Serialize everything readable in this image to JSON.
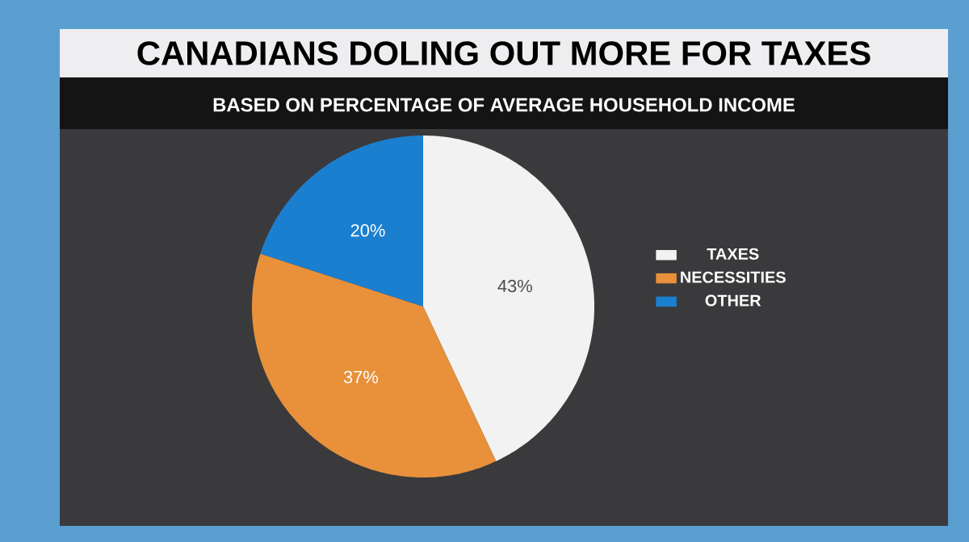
{
  "chart_data": {
    "type": "pie",
    "title": "CANADIANS DOLING OUT MORE FOR TAXES",
    "subtitle": "BASED ON PERCENTAGE OF AVERAGE HOUSEHOLD INCOME",
    "categories": [
      "TAXES",
      "NECESSITIES",
      "OTHER"
    ],
    "values": [
      43,
      37,
      20
    ],
    "value_labels": [
      "43%",
      "37%",
      "20%"
    ],
    "colors": [
      "#f2f2f2",
      "#e8913a",
      "#1b7fd0"
    ],
    "legend": "right"
  }
}
